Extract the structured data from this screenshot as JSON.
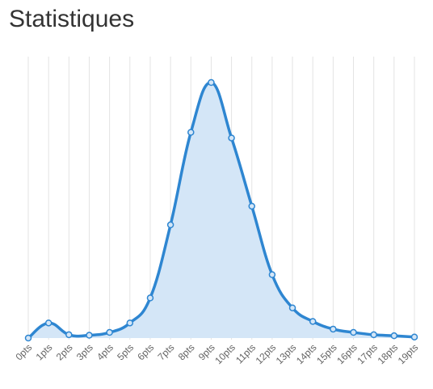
{
  "page": {
    "title": "Statistiques"
  },
  "chart_data": {
    "type": "area",
    "categories": [
      "0pts",
      "1pts",
      "2pts",
      "3pts",
      "4pts",
      "5pts",
      "6pts",
      "7pts",
      "8pts",
      "9pts",
      "10pts",
      "11pts",
      "12pts",
      "13pts",
      "14pts",
      "15pts",
      "16pts",
      "17pts",
      "18pts",
      "19pts"
    ],
    "series": [
      {
        "values": [
          0,
          5.9,
          1.3,
          1.1,
          2.2,
          5.9,
          15.7,
          44.3,
          80.5,
          100,
          78.3,
          51.6,
          24.8,
          11.8,
          6.5,
          3.5,
          2.2,
          1.3,
          0.9,
          0.4
        ]
      }
    ],
    "xlabel": "",
    "ylabel": "",
    "ylim": [
      0,
      100
    ],
    "grid": "vertical",
    "legend": "none",
    "colors": {
      "line": "#2e86d1",
      "fill": "#d4e6f7",
      "grid": "#e3e3e3",
      "tick_text": "#666666"
    }
  }
}
